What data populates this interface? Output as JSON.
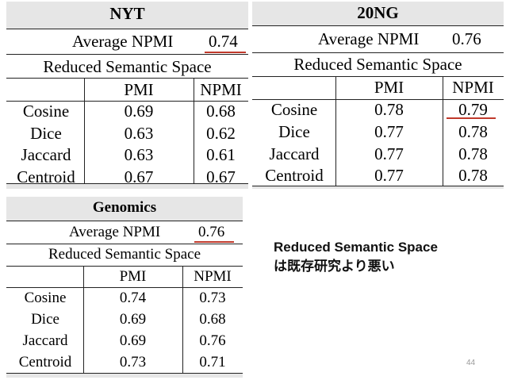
{
  "tables": {
    "nyt": {
      "title": "NYT",
      "avg_label": "Average NPMI",
      "avg_value": "0.74",
      "space_label": "Reduced Semantic Space",
      "col_pmi": "PMI",
      "col_npmi": "NPMI",
      "rows": [
        {
          "label": "Cosine",
          "pmi": "0.69",
          "npmi": "0.68"
        },
        {
          "label": "Dice",
          "pmi": "0.63",
          "npmi": "0.62"
        },
        {
          "label": "Jaccard",
          "pmi": "0.63",
          "npmi": "0.61"
        },
        {
          "label": "Centroid",
          "pmi": "0.67",
          "npmi": "0.67"
        }
      ]
    },
    "ng20": {
      "title": "20NG",
      "avg_label": "Average NPMI",
      "avg_value": "0.76",
      "space_label": "Reduced Semantic Space",
      "col_pmi": "PMI",
      "col_npmi": "NPMI",
      "rows": [
        {
          "label": "Cosine",
          "pmi": "0.78",
          "npmi": "0.79"
        },
        {
          "label": "Dice",
          "pmi": "0.77",
          "npmi": "0.78"
        },
        {
          "label": "Jaccard",
          "pmi": "0.77",
          "npmi": "0.78"
        },
        {
          "label": "Centroid",
          "pmi": "0.77",
          "npmi": "0.78"
        }
      ]
    },
    "genomics": {
      "title": "Genomics",
      "avg_label": "Average NPMI",
      "avg_value": "0.76",
      "space_label": "Reduced Semantic Space",
      "col_pmi": "PMI",
      "col_npmi": "NPMI",
      "rows": [
        {
          "label": "Cosine",
          "pmi": "0.74",
          "npmi": "0.73"
        },
        {
          "label": "Dice",
          "pmi": "0.69",
          "npmi": "0.68"
        },
        {
          "label": "Jaccard",
          "pmi": "0.69",
          "npmi": "0.76"
        },
        {
          "label": "Centroid",
          "pmi": "0.73",
          "npmi": "0.71"
        }
      ]
    }
  },
  "note": {
    "line1": "Reduced Semantic Space",
    "line2": "は既存研究より悪い"
  },
  "page_number": "44",
  "colors": {
    "underline": "#c0392b",
    "shade": "#e6e6e6"
  }
}
